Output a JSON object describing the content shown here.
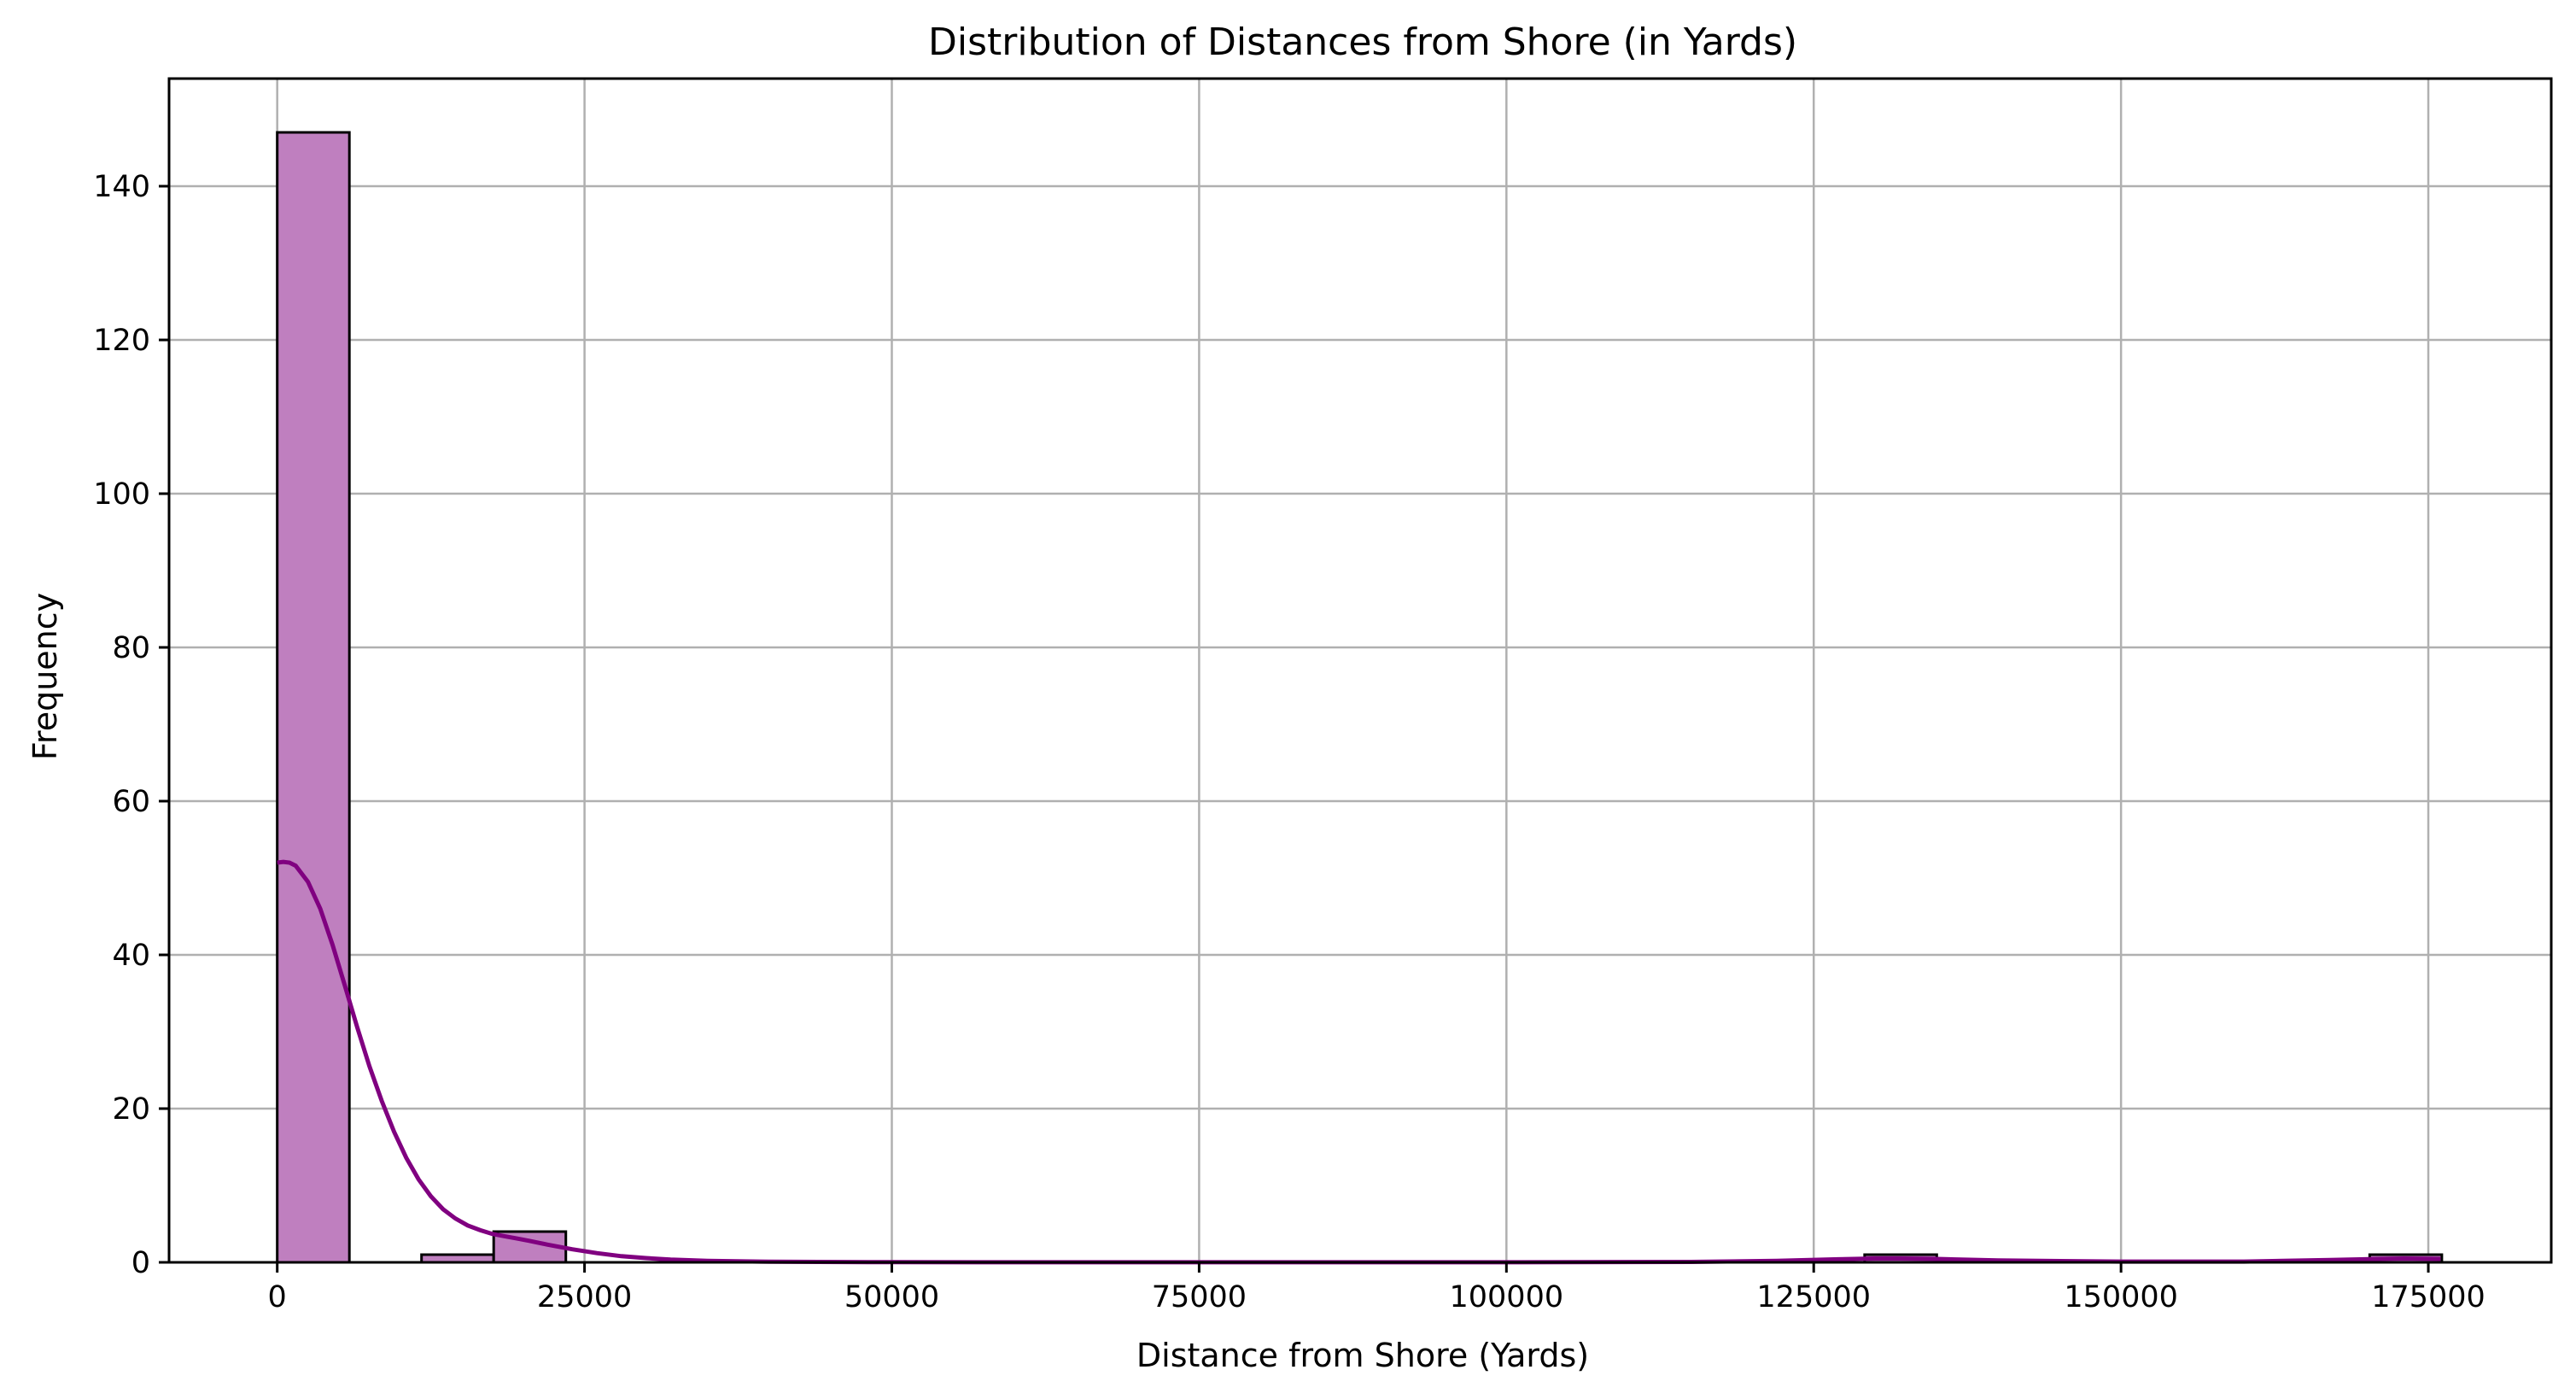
{
  "chart_data": {
    "type": "bar",
    "title": "Distribution of Distances from Shore (in Yards)",
    "xlabel": "Distance from Shore (Yards)",
    "ylabel": "Frequency",
    "xlim": [
      -8800,
      185000
    ],
    "ylim": [
      0,
      154
    ],
    "xticks": [
      0,
      25000,
      50000,
      75000,
      100000,
      125000,
      150000,
      175000
    ],
    "yticks": [
      0,
      20,
      40,
      60,
      80,
      100,
      120,
      140
    ],
    "grid": true,
    "bar_color": "#bf7fbf",
    "edge_color": "#000000",
    "kde_color": "#800080",
    "bins": [
      {
        "x0": 0,
        "x1": 5870,
        "count": 147
      },
      {
        "x0": 11740,
        "x1": 17610,
        "count": 1
      },
      {
        "x0": 17610,
        "x1": 23480,
        "count": 4
      },
      {
        "x0": 129140,
        "x1": 135010,
        "count": 1
      },
      {
        "x0": 170230,
        "x1": 176100,
        "count": 1
      }
    ],
    "kde": {
      "x": [
        0,
        500,
        1000,
        1500,
        2500,
        3500,
        4500,
        5500,
        6500,
        7500,
        8500,
        9500,
        10500,
        11500,
        12500,
        13500,
        14500,
        15500,
        16500,
        17500,
        18500,
        19500,
        20500,
        22000,
        24000,
        26000,
        28000,
        30000,
        32000,
        35000,
        40000,
        50000,
        75000,
        100000,
        115000,
        122000,
        127000,
        130000,
        132000,
        135000,
        140000,
        150000,
        160000,
        167000,
        171000,
        173000,
        176000
      ],
      "y": [
        52,
        52.1,
        52,
        51.6,
        49.5,
        46,
        41.3,
        36,
        30.6,
        25.5,
        21,
        17,
        13.6,
        10.8,
        8.6,
        6.9,
        5.7,
        4.8,
        4.2,
        3.7,
        3.4,
        3.1,
        2.8,
        2.3,
        1.7,
        1.2,
        0.8,
        0.55,
        0.35,
        0.2,
        0.08,
        0.02,
        0.01,
        0.01,
        0.05,
        0.2,
        0.4,
        0.5,
        0.5,
        0.45,
        0.25,
        0.1,
        0.1,
        0.3,
        0.45,
        0.5,
        0.45
      ]
    }
  }
}
